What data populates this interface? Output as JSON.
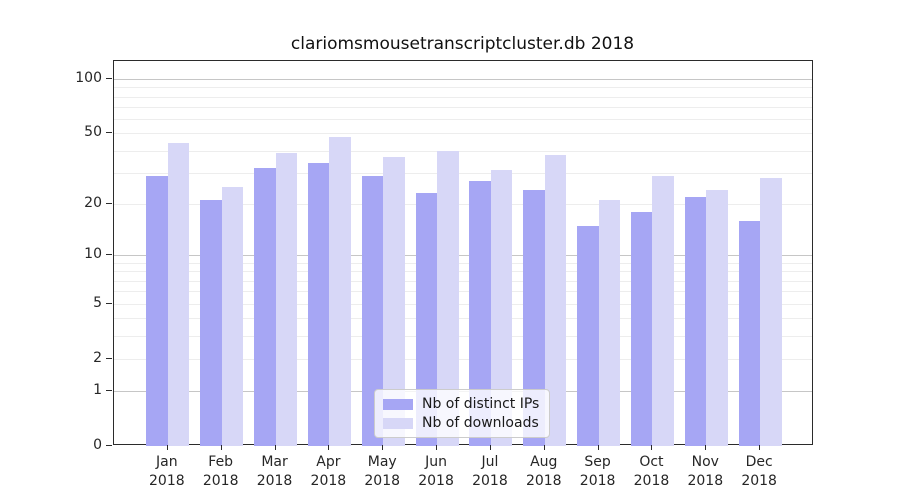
{
  "chart_data": {
    "type": "bar",
    "title": "clariomsmousetranscriptcluster.db 2018",
    "x_categories": [
      "Jan",
      "Feb",
      "Mar",
      "Apr",
      "May",
      "Jun",
      "Jul",
      "Aug",
      "Sep",
      "Oct",
      "Nov",
      "Dec"
    ],
    "x_year": "2018",
    "series": [
      {
        "name": "Nb of distinct IPs",
        "color": "#a6a6f4",
        "values": [
          29,
          21,
          32,
          34,
          29,
          23,
          27,
          24,
          15,
          18,
          22,
          16
        ]
      },
      {
        "name": "Nb of downloads",
        "color": "#d7d7f7",
        "values": [
          44,
          25,
          39,
          48,
          37,
          40,
          31,
          38,
          21,
          29,
          24,
          28
        ]
      }
    ],
    "y_scale": "log1p",
    "y_axis_range": [
      0,
      100
    ],
    "y_tick_labels": [
      0,
      1,
      2,
      5,
      10,
      20,
      50,
      100
    ],
    "y_major_gridlines": [
      1,
      10,
      100
    ],
    "y_minor_gridlines": [
      2,
      3,
      4,
      5,
      6,
      7,
      8,
      9,
      20,
      30,
      40,
      50,
      60,
      70,
      80,
      90
    ],
    "grid_major_color": "#c6c6c6",
    "grid_minor_color": "#ededed",
    "legend_position": "bottom-center",
    "bar_group_width_ratio": 0.8
  }
}
